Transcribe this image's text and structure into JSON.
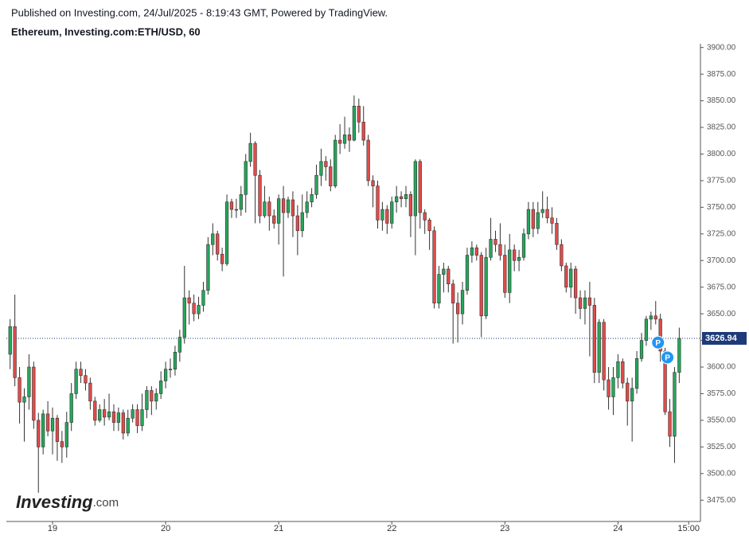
{
  "published": "Published on Investing.com, 24/Jul/2025 - 8:19:43 GMT, Powered by TradingView.",
  "logo": {
    "name": "Investing",
    "suffix": ".com"
  },
  "chart_data": {
    "type": "candlestick",
    "title": "Ethereum, Investing.com:ETH/USD, 60",
    "up_color": "#26a65b",
    "down_color": "#e04b4a",
    "x": [
      -9,
      -8,
      -7,
      -6,
      -5,
      -4,
      -3,
      -2,
      -1,
      0,
      1,
      2,
      3,
      4,
      5,
      6,
      7,
      8,
      9,
      10,
      11,
      12,
      13,
      14,
      15,
      16,
      17,
      18,
      19,
      20,
      21,
      22,
      23,
      24,
      25,
      26,
      27,
      28,
      29,
      30,
      31,
      32,
      33,
      34,
      35,
      36,
      37,
      38,
      39,
      40,
      41,
      42,
      43,
      44,
      45,
      46,
      47,
      48,
      49,
      50,
      51,
      52,
      53,
      54,
      55,
      56,
      57,
      58,
      59,
      60,
      61,
      62,
      63,
      64,
      65,
      66,
      67,
      68,
      69,
      70,
      71,
      72,
      73,
      74,
      75,
      76,
      77,
      78,
      79,
      80,
      81,
      82,
      83,
      84,
      85,
      86,
      87,
      88,
      89,
      90,
      91,
      92,
      93,
      94,
      95,
      96,
      97,
      98,
      99,
      100,
      101,
      102,
      103,
      104,
      105,
      106,
      107,
      108,
      109,
      110,
      111,
      112,
      113,
      114,
      115,
      116,
      117,
      118,
      119,
      120,
      121,
      122,
      123,
      124,
      125,
      126,
      127,
      128,
      129,
      130,
      131,
      132,
      133
    ],
    "open": [
      3612,
      3638,
      3590,
      3567,
      3572,
      3600,
      3550,
      3525,
      3556,
      3540,
      3552,
      3530,
      3525,
      3548,
      3575,
      3598,
      3592,
      3585,
      3568,
      3550,
      3560,
      3553,
      3558,
      3548,
      3557,
      3538,
      3552,
      3560,
      3545,
      3560,
      3578,
      3568,
      3575,
      3587,
      3598,
      3598,
      3614,
      3628,
      3665,
      3660,
      3650,
      3658,
      3672,
      3715,
      3725,
      3706,
      3697,
      3755,
      3748,
      3748,
      3762,
      3793,
      3810,
      3780,
      3742,
      3755,
      3742,
      3735,
      3758,
      3745,
      3757,
      3742,
      3728,
      3745,
      3755,
      3762,
      3780,
      3793,
      3788,
      3770,
      3813,
      3810,
      3818,
      3813,
      3845,
      3830,
      3813,
      3775,
      3770,
      3738,
      3748,
      3735,
      3755,
      3760,
      3758,
      3762,
      3742,
      3793,
      3745,
      3738,
      3728,
      3660,
      3687,
      3692,
      3678,
      3660,
      3650,
      3672,
      3705,
      3712,
      3705,
      3648,
      3703,
      3720,
      3715,
      3705,
      3670,
      3710,
      3700,
      3703,
      3725,
      3748,
      3730,
      3745,
      3748,
      3740,
      3735,
      3715,
      3695,
      3675,
      3692,
      3665,
      3655,
      3665,
      3658,
      3595,
      3642,
      3588,
      3572,
      3590,
      3605,
      3585,
      3568,
      3580,
      3608,
      3625,
      3645,
      3648,
      3645,
      3615,
      3558,
      3535,
      3595
    ],
    "high": [
      3645,
      3668,
      3600,
      3580,
      3612,
      3605,
      3557,
      3560,
      3568,
      3562,
      3555,
      3540,
      3558,
      3585,
      3605,
      3605,
      3598,
      3590,
      3572,
      3565,
      3570,
      3575,
      3565,
      3562,
      3560,
      3560,
      3565,
      3565,
      3575,
      3582,
      3582,
      3580,
      3596,
      3605,
      3608,
      3620,
      3635,
      3695,
      3672,
      3668,
      3666,
      3680,
      3722,
      3735,
      3728,
      3712,
      3762,
      3758,
      3758,
      3770,
      3800,
      3820,
      3812,
      3785,
      3770,
      3760,
      3748,
      3762,
      3770,
      3760,
      3765,
      3752,
      3762,
      3765,
      3768,
      3790,
      3805,
      3798,
      3795,
      3818,
      3828,
      3835,
      3825,
      3855,
      3852,
      3845,
      3818,
      3780,
      3775,
      3755,
      3752,
      3760,
      3770,
      3765,
      3770,
      3765,
      3795,
      3795,
      3748,
      3740,
      3732,
      3695,
      3698,
      3695,
      3682,
      3670,
      3680,
      3712,
      3718,
      3715,
      3708,
      3712,
      3740,
      3728,
      3735,
      3715,
      3725,
      3715,
      3710,
      3730,
      3755,
      3755,
      3755,
      3765,
      3760,
      3750,
      3740,
      3720,
      3698,
      3698,
      3695,
      3672,
      3672,
      3680,
      3665,
      3645,
      3645,
      3600,
      3600,
      3612,
      3608,
      3590,
      3590,
      3615,
      3632,
      3648,
      3652,
      3662,
      3650,
      3618,
      3570,
      3600,
      3637
    ],
    "low": [
      3598,
      3582,
      3547,
      3530,
      3560,
      3542,
      3482,
      3518,
      3535,
      3518,
      3512,
      3510,
      3515,
      3540,
      3570,
      3585,
      3578,
      3560,
      3545,
      3548,
      3545,
      3550,
      3540,
      3540,
      3532,
      3535,
      3548,
      3538,
      3540,
      3552,
      3555,
      3560,
      3570,
      3580,
      3590,
      3592,
      3605,
      3622,
      3640,
      3643,
      3645,
      3652,
      3668,
      3705,
      3700,
      3690,
      3695,
      3740,
      3740,
      3742,
      3745,
      3788,
      3735,
      3735,
      3740,
      3728,
      3730,
      3715,
      3685,
      3740,
      3722,
      3705,
      3722,
      3740,
      3750,
      3758,
      3770,
      3775,
      3765,
      3768,
      3800,
      3805,
      3802,
      3812,
      3820,
      3808,
      3770,
      3750,
      3730,
      3728,
      3725,
      3730,
      3745,
      3750,
      3750,
      3722,
      3705,
      3730,
      3725,
      3710,
      3655,
      3655,
      3670,
      3670,
      3622,
      3623,
      3640,
      3668,
      3698,
      3700,
      3628,
      3645,
      3700,
      3708,
      3700,
      3665,
      3660,
      3690,
      3690,
      3700,
      3720,
      3722,
      3725,
      3740,
      3735,
      3725,
      3710,
      3690,
      3670,
      3665,
      3650,
      3645,
      3640,
      3610,
      3585,
      3585,
      3578,
      3560,
      3555,
      3580,
      3580,
      3545,
      3530,
      3575,
      3605,
      3620,
      3635,
      3640,
      3605,
      3555,
      3525,
      3510,
      3585
    ],
    "close": [
      3638,
      3590,
      3567,
      3572,
      3600,
      3550,
      3525,
      3556,
      3540,
      3552,
      3530,
      3525,
      3548,
      3575,
      3598,
      3592,
      3585,
      3568,
      3550,
      3560,
      3553,
      3558,
      3548,
      3557,
      3538,
      3552,
      3560,
      3545,
      3560,
      3578,
      3568,
      3575,
      3587,
      3598,
      3598,
      3614,
      3628,
      3665,
      3660,
      3650,
      3658,
      3672,
      3715,
      3725,
      3706,
      3697,
      3755,
      3748,
      3748,
      3762,
      3793,
      3810,
      3780,
      3742,
      3755,
      3742,
      3735,
      3758,
      3745,
      3757,
      3742,
      3728,
      3745,
      3755,
      3762,
      3780,
      3793,
      3788,
      3770,
      3813,
      3810,
      3818,
      3813,
      3845,
      3830,
      3813,
      3775,
      3770,
      3738,
      3748,
      3735,
      3755,
      3760,
      3758,
      3762,
      3742,
      3793,
      3745,
      3738,
      3728,
      3660,
      3687,
      3692,
      3678,
      3660,
      3650,
      3672,
      3705,
      3712,
      3705,
      3648,
      3703,
      3720,
      3715,
      3705,
      3670,
      3710,
      3700,
      3703,
      3725,
      3748,
      3730,
      3745,
      3748,
      3740,
      3735,
      3715,
      3695,
      3675,
      3692,
      3665,
      3655,
      3665,
      3658,
      3595,
      3642,
      3588,
      3572,
      3590,
      3605,
      3585,
      3568,
      3580,
      3608,
      3625,
      3645,
      3648,
      3645,
      3615,
      3558,
      3535,
      3595,
      3626.94
    ],
    "xlim": [
      -9.8,
      137.5
    ],
    "xticks": [
      {
        "value": 0,
        "label": "19"
      },
      {
        "value": 24,
        "label": "20"
      },
      {
        "value": 48,
        "label": "21"
      },
      {
        "value": 72,
        "label": "22"
      },
      {
        "value": 96,
        "label": "23"
      },
      {
        "value": 120,
        "label": "24"
      },
      {
        "value": 135,
        "label": "15:00"
      }
    ],
    "ylim": [
      3455,
      3903.5
    ],
    "yticks": [
      {
        "value": 3475,
        "label": "3475.00"
      },
      {
        "value": 3500,
        "label": "3500.00"
      },
      {
        "value": 3525,
        "label": "3525.00"
      },
      {
        "value": 3550,
        "label": "3550.00"
      },
      {
        "value": 3575,
        "label": "3575.00"
      },
      {
        "value": 3600,
        "label": "3600.00"
      },
      {
        "value": 3625,
        "label": "3625.00"
      },
      {
        "value": 3650,
        "label": "3650.00"
      },
      {
        "value": 3675,
        "label": "3675.00"
      },
      {
        "value": 3700,
        "label": "3700.00"
      },
      {
        "value": 3725,
        "label": "3725.00"
      },
      {
        "value": 3750,
        "label": "3750.00"
      },
      {
        "value": 3775,
        "label": "3775.00"
      },
      {
        "value": 3800,
        "label": "3800.00"
      },
      {
        "value": 3825,
        "label": "3825.00"
      },
      {
        "value": 3850,
        "label": "3850.00"
      },
      {
        "value": 3875,
        "label": "3875.00"
      },
      {
        "value": 3900,
        "label": "3900.00"
      }
    ],
    "last_price": {
      "value": 3626.94,
      "label": "3626.94",
      "color": "#1e3a78"
    },
    "markers": [
      {
        "label": "P",
        "x": 128.5,
        "y": 3623,
        "color": "#2196f3"
      },
      {
        "label": "P",
        "x": 130.5,
        "y": 3609,
        "color": "#2196f3"
      }
    ]
  }
}
